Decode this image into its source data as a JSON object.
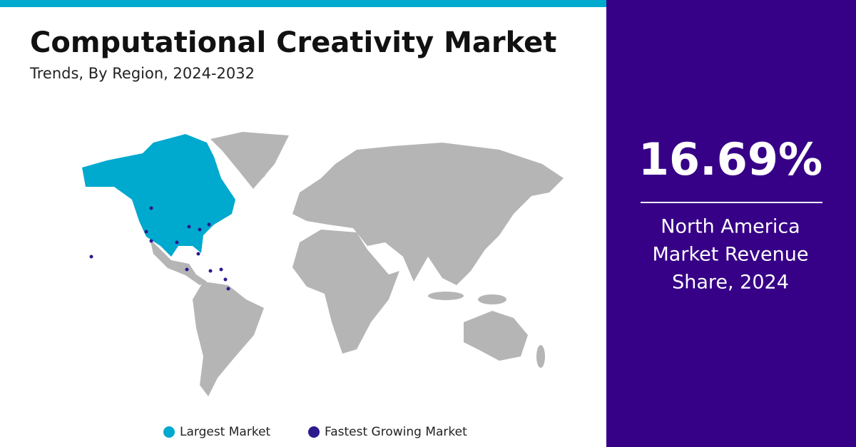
{
  "header": {
    "title": "Computational Creativity Market",
    "subtitle": "Trends, By Region, 2024-2032"
  },
  "stat": {
    "value": "16.69%",
    "lines": [
      "North America",
      "Market Revenue",
      "Share, 2024"
    ]
  },
  "legend": [
    {
      "label": "Largest Market",
      "color": "#00a9ce"
    },
    {
      "label": "Fastest Growing Market",
      "color": "#2e1a8c"
    }
  ]
}
